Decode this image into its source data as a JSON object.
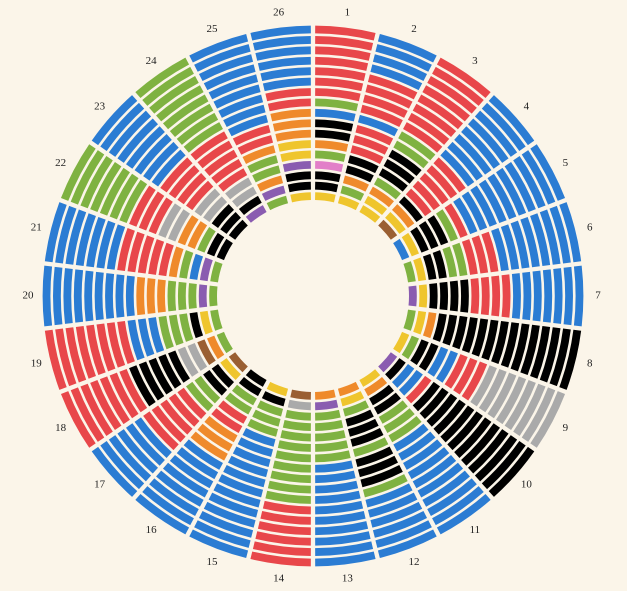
{
  "chart_data": {
    "type": "radial-rings",
    "palette": {
      "r": "#e8474a",
      "b": "#2b7cd3",
      "g": "#7fb241",
      "o": "#ef8a2b",
      "k": "#000000",
      "y": "#efc52d",
      "p": "#8a5cb0",
      "a": "#aaaaaa",
      "w": "#9a5f32",
      "m": "#e27fc8"
    },
    "sectors": [
      {
        "label": "1",
        "cells": "ykkmgokkbgrrrrrrr"
      },
      {
        "label": "2",
        "cells": "ygokkrrrbrrrrbbbb"
      },
      {
        "label": "3",
        "cells": "yyogkkkggrrrrrrrr"
      },
      {
        "label": "4",
        "cells": "wyokrrrrrbbbbbbbb"
      },
      {
        "label": "5",
        "cells": "bykkkgrbbbbbbbbbb"
      },
      {
        "label": "6",
        "cells": "gykkggrrrbbbbbbbb"
      },
      {
        "label": "7",
        "cells": "pykkkkrrrrbbbbbbb"
      },
      {
        "label": "8",
        "cells": "gyokkkkkkkkkkkkkk"
      },
      {
        "label": "9",
        "cells": "ygkkbbrrraaaaaaaa"
      },
      {
        "label": "10",
        "cells": "pkbbrkkkkkkkkkkkk"
      },
      {
        "label": "11",
        "cells": "yokkgggbbbbbbbbbb"
      },
      {
        "label": "12",
        "cells": "oygkkkgkkkgbbbbbb"
      },
      {
        "label": "13",
        "cells": "opgggggbbbbbbbbbb"
      },
      {
        "label": "14",
        "cells": "wagggggggggrrrrrr"
      },
      {
        "label": "15",
        "cells": "ykgggbbbbbbbbbbbb"
      },
      {
        "label": "16",
        "cells": "kkggrrooobbbbbbbb"
      },
      {
        "label": "17",
        "cells": "wykkggrrrrrbbbbbb"
      },
      {
        "label": "18",
        "cells": "gowaakkkkkrrrrrrr"
      },
      {
        "label": "19",
        "cells": "gykgggbbbrrrrrrrr"
      },
      {
        "label": "20",
        "cells": "gpgggooobbbbbbbbb"
      },
      {
        "label": "21",
        "cells": "gpbgorrrrrbbbbbbb"
      },
      {
        "label": "22",
        "cells": "kkgooaarrrggggggg"
      },
      {
        "label": "23",
        "cells": "kkkaarrrrbbbbbbbb"
      },
      {
        "label": "24",
        "cells": "pkaarrrrrgggggggg"
      },
      {
        "label": "25",
        "cells": "gpoggorrbbbbbbbbb"
      },
      {
        "label": "26",
        "cells": "ykkpyyooorrbbbbbb"
      }
    ]
  }
}
